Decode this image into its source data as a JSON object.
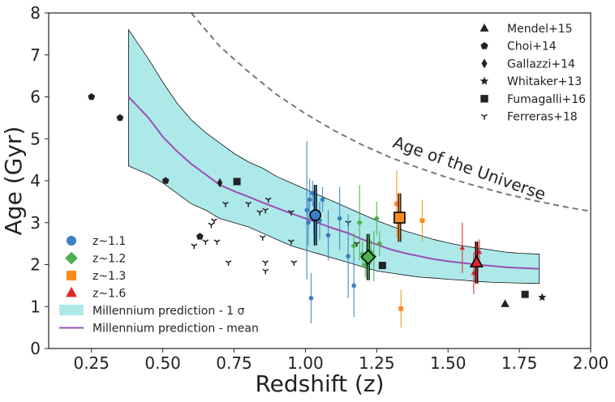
{
  "chart_data": {
    "type": "scatter",
    "xlabel": "Redshift (z)",
    "ylabel": "Age (Gyr)",
    "xlim": [
      0.1,
      2.0
    ],
    "ylim": [
      0,
      8
    ],
    "xticks": [
      "0.25",
      "0.50",
      "0.75",
      "1.00",
      "1.25",
      "1.50",
      "1.75",
      "2.00"
    ],
    "yticks": [
      "0",
      "1",
      "2",
      "3",
      "4",
      "5",
      "6",
      "7",
      "8"
    ],
    "grid": false,
    "annotation": "Age of the Universe",
    "colors": {
      "z11": "#3a7fc1",
      "z12": "#4cb04c",
      "z13": "#ff8c1a",
      "z16": "#e0262c",
      "band": "#aee9ea",
      "mean": "#9b4fb5",
      "universe": "#777777",
      "literature": "#222222"
    },
    "universe_curve": {
      "x": [
        0.6,
        0.7,
        0.8,
        0.9,
        1.0,
        1.1,
        1.2,
        1.3,
        1.4,
        1.5,
        1.6,
        1.7,
        1.8,
        1.9,
        2.0
      ],
      "y": [
        8.0,
        7.2,
        6.6,
        6.05,
        5.6,
        5.2,
        4.85,
        4.55,
        4.3,
        4.07,
        3.87,
        3.69,
        3.53,
        3.39,
        3.27
      ]
    },
    "millennium": {
      "x": [
        0.38,
        0.45,
        0.5,
        0.55,
        0.6,
        0.65,
        0.7,
        0.75,
        0.8,
        0.85,
        0.9,
        0.95,
        1.0,
        1.05,
        1.1,
        1.15,
        1.2,
        1.25,
        1.3,
        1.35,
        1.4,
        1.45,
        1.5,
        1.55,
        1.6,
        1.65,
        1.7,
        1.75,
        1.82
      ],
      "mean": [
        6.0,
        5.5,
        5.05,
        4.7,
        4.4,
        4.15,
        3.9,
        3.75,
        3.62,
        3.48,
        3.35,
        3.22,
        3.1,
        2.98,
        2.86,
        2.75,
        2.6,
        2.48,
        2.36,
        2.27,
        2.2,
        2.13,
        2.08,
        2.04,
        2.0,
        1.97,
        1.94,
        1.92,
        1.9
      ],
      "upper": [
        7.6,
        6.9,
        6.35,
        5.85,
        5.45,
        5.15,
        4.9,
        4.65,
        4.45,
        4.3,
        4.1,
        3.95,
        3.8,
        3.65,
        3.5,
        3.35,
        3.2,
        3.05,
        2.92,
        2.8,
        2.7,
        2.6,
        2.52,
        2.45,
        2.4,
        2.35,
        2.3,
        2.27,
        2.25
      ],
      "lower": [
        4.35,
        4.15,
        3.95,
        3.7,
        3.45,
        3.3,
        3.1,
        3.0,
        2.9,
        2.75,
        2.6,
        2.45,
        2.35,
        2.25,
        2.15,
        2.05,
        1.95,
        1.85,
        1.8,
        1.75,
        1.7,
        1.68,
        1.65,
        1.63,
        1.6,
        1.58,
        1.57,
        1.56,
        1.55
      ]
    },
    "series": [
      {
        "name": "z~1.1",
        "color": "#3a7fc1",
        "marker": "circle",
        "mean": {
          "x": 1.035,
          "y": 3.18,
          "err": 0.72
        },
        "points": [
          {
            "x": 1.005,
            "y": 3.3,
            "err": 1.65
          },
          {
            "x": 1.01,
            "y": 3.0,
            "err": 0.55
          },
          {
            "x": 1.015,
            "y": 3.55,
            "err": 0.5
          },
          {
            "x": 1.02,
            "y": 1.2,
            "err": 0.6
          },
          {
            "x": 1.025,
            "y": 3.7,
            "err": 0.3
          },
          {
            "x": 1.03,
            "y": 3.1,
            "err": 0.4
          },
          {
            "x": 1.05,
            "y": 3.05,
            "err": 0.45
          },
          {
            "x": 1.06,
            "y": 3.55,
            "err": 0.3
          },
          {
            "x": 1.08,
            "y": 2.7,
            "err": 0.6
          },
          {
            "x": 1.12,
            "y": 3.1,
            "err": 0.75
          },
          {
            "x": 1.15,
            "y": 2.2,
            "err": 1.0
          },
          {
            "x": 1.17,
            "y": 1.5,
            "err": 0.75
          }
        ]
      },
      {
        "name": "z~1.2",
        "color": "#4cb04c",
        "marker": "diamond",
        "mean": {
          "x": 1.22,
          "y": 2.18,
          "err": 0.55
        },
        "points": [
          {
            "x": 1.17,
            "y": 2.45,
            "err": 0.3
          },
          {
            "x": 1.19,
            "y": 3.0,
            "err": 0.9
          },
          {
            "x": 1.2,
            "y": 2.25,
            "err": 0.3
          },
          {
            "x": 1.21,
            "y": 2.0,
            "err": 0.3
          },
          {
            "x": 1.23,
            "y": 2.3,
            "err": 0.3
          },
          {
            "x": 1.24,
            "y": 2.2,
            "err": 0.6
          },
          {
            "x": 1.25,
            "y": 3.1,
            "err": 0.4
          },
          {
            "x": 1.26,
            "y": 2.5,
            "err": 0.3
          }
        ]
      },
      {
        "name": "z~1.3",
        "color": "#ff8c1a",
        "marker": "square",
        "mean": {
          "x": 1.33,
          "y": 3.12,
          "err": 0.58
        },
        "points": [
          {
            "x": 1.32,
            "y": 3.45,
            "err": 0.8
          },
          {
            "x": 1.335,
            "y": 0.95,
            "err": 0.45
          },
          {
            "x": 1.41,
            "y": 3.05,
            "err": 0.5
          }
        ]
      },
      {
        "name": "z~1.6",
        "color": "#e0262c",
        "marker": "triangle",
        "mean": {
          "x": 1.6,
          "y": 2.05,
          "err": 0.5
        },
        "points": [
          {
            "x": 1.55,
            "y": 2.4,
            "err": 0.6
          },
          {
            "x": 1.59,
            "y": 1.8,
            "err": 0.5
          },
          {
            "x": 1.61,
            "y": 2.3,
            "err": 0.3
          }
        ]
      }
    ],
    "literature": [
      {
        "name": "Mendel+15",
        "marker": "triangle",
        "points": [
          {
            "x": 1.7,
            "y": 1.06
          }
        ]
      },
      {
        "name": "Choi+14",
        "marker": "pentagon",
        "points": [
          {
            "x": 0.25,
            "y": 6.0
          },
          {
            "x": 0.35,
            "y": 5.5
          },
          {
            "x": 0.51,
            "y": 4.0
          },
          {
            "x": 0.63,
            "y": 2.67
          }
        ]
      },
      {
        "name": "Gallazzi+14",
        "marker": "thin_diamond",
        "points": [
          {
            "x": 0.7,
            "y": 3.95
          }
        ]
      },
      {
        "name": "Whitaker+13",
        "marker": "star",
        "points": [
          {
            "x": 1.83,
            "y": 1.22
          }
        ]
      },
      {
        "name": "Fumagalli+16",
        "marker": "square",
        "points": [
          {
            "x": 0.76,
            "y": 3.98
          },
          {
            "x": 1.27,
            "y": 1.98
          },
          {
            "x": 1.77,
            "y": 1.29
          }
        ]
      },
      {
        "name": "Ferreras+18",
        "marker": "tri_down",
        "points": [
          {
            "x": 0.61,
            "y": 2.45
          },
          {
            "x": 0.65,
            "y": 2.55
          },
          {
            "x": 0.67,
            "y": 2.95
          },
          {
            "x": 0.68,
            "y": 3.05
          },
          {
            "x": 0.69,
            "y": 2.55
          },
          {
            "x": 0.72,
            "y": 3.45
          },
          {
            "x": 0.73,
            "y": 2.05
          },
          {
            "x": 0.8,
            "y": 3.45
          },
          {
            "x": 0.84,
            "y": 3.25
          },
          {
            "x": 0.85,
            "y": 2.65
          },
          {
            "x": 0.86,
            "y": 3.3
          },
          {
            "x": 0.86,
            "y": 1.85
          },
          {
            "x": 0.86,
            "y": 2.05
          },
          {
            "x": 0.87,
            "y": 3.55
          },
          {
            "x": 0.95,
            "y": 2.55
          },
          {
            "x": 0.95,
            "y": 3.25
          },
          {
            "x": 0.96,
            "y": 2.05
          },
          {
            "x": 1.15,
            "y": 3.0
          },
          {
            "x": 1.18,
            "y": 2.5
          }
        ]
      }
    ],
    "legend_left": [
      {
        "label": "z~1.1",
        "marker": "circle",
        "color": "#3a7fc1"
      },
      {
        "label": "z~1.2",
        "marker": "diamond",
        "color": "#4cb04c"
      },
      {
        "label": "z~1.3",
        "marker": "square",
        "color": "#ff8c1a"
      },
      {
        "label": "z~1.6",
        "marker": "triangle",
        "color": "#e0262c"
      },
      {
        "label": "Millennium prediction - 1 σ",
        "marker": "band",
        "color": "#aee9ea"
      },
      {
        "label": "Millennium prediction - mean",
        "marker": "line",
        "color": "#9b4fb5"
      }
    ],
    "legend_right": [
      {
        "label": "Mendel+15",
        "marker": "triangle"
      },
      {
        "label": "Choi+14",
        "marker": "pentagon"
      },
      {
        "label": "Gallazzi+14",
        "marker": "thin_diamond"
      },
      {
        "label": "Whitaker+13",
        "marker": "star"
      },
      {
        "label": "Fumagalli+16",
        "marker": "square"
      },
      {
        "label": "Ferreras+18",
        "marker": "tri_down"
      }
    ]
  }
}
